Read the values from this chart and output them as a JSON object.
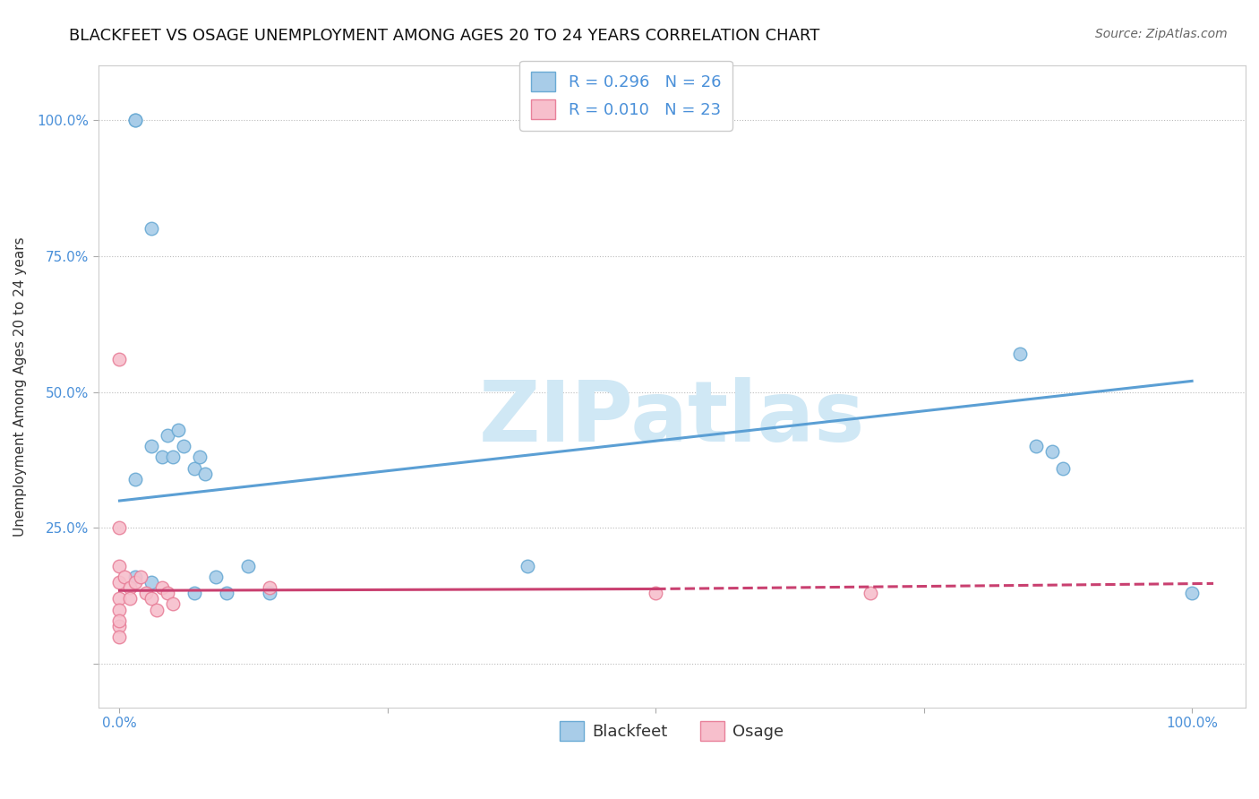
{
  "title": "BLACKFEET VS OSAGE UNEMPLOYMENT AMONG AGES 20 TO 24 YEARS CORRELATION CHART",
  "source": "Source: ZipAtlas.com",
  "ylabel": "Unemployment Among Ages 20 to 24 years",
  "xlim": [
    -0.02,
    1.05
  ],
  "ylim": [
    -0.08,
    1.1
  ],
  "blackfeet_color": "#a8cce8",
  "osage_color": "#f7bfcc",
  "blackfeet_edge": "#6aaad4",
  "osage_edge": "#e8819a",
  "trend_blackfeet_color": "#5b9fd4",
  "trend_osage_color": "#c94070",
  "blackfeet_R": "0.296",
  "blackfeet_N": "26",
  "osage_R": "0.010",
  "osage_N": "23",
  "legend_label_blackfeet": "Blackfeet",
  "legend_label_osage": "Osage",
  "blackfeet_x": [
    0.015,
    0.015,
    0.03,
    0.03,
    0.04,
    0.045,
    0.05,
    0.055,
    0.06,
    0.07,
    0.075,
    0.08,
    0.09,
    0.1,
    0.12,
    0.14,
    0.38,
    0.84,
    0.855,
    0.87,
    0.88,
    1.0,
    0.015,
    0.015,
    0.03,
    0.07
  ],
  "blackfeet_y": [
    1.0,
    1.0,
    0.8,
    0.4,
    0.38,
    0.42,
    0.38,
    0.43,
    0.4,
    0.36,
    0.38,
    0.35,
    0.16,
    0.13,
    0.18,
    0.13,
    0.18,
    0.57,
    0.4,
    0.39,
    0.36,
    0.13,
    0.34,
    0.16,
    0.15,
    0.13
  ],
  "osage_x": [
    0.0,
    0.0,
    0.0,
    0.0,
    0.0,
    0.0,
    0.005,
    0.01,
    0.01,
    0.015,
    0.02,
    0.025,
    0.03,
    0.035,
    0.04,
    0.045,
    0.05,
    0.14,
    0.5,
    0.7,
    0.0,
    0.0,
    0.0
  ],
  "osage_y": [
    0.56,
    0.25,
    0.18,
    0.15,
    0.12,
    0.07,
    0.16,
    0.14,
    0.12,
    0.15,
    0.16,
    0.13,
    0.12,
    0.1,
    0.14,
    0.13,
    0.11,
    0.14,
    0.13,
    0.13,
    0.1,
    0.08,
    0.05
  ],
  "blackfeet_trend": [
    0.0,
    1.0,
    0.3,
    0.52
  ],
  "osage_trend_solid": [
    0.0,
    0.5,
    0.135,
    0.138
  ],
  "osage_trend_dashed": [
    0.5,
    1.02,
    0.138,
    0.148
  ],
  "watermark_text": "ZIPatlas",
  "watermark_color": "#d0e8f5",
  "grid_color": "#bbbbbb",
  "title_fontsize": 13,
  "axis_label_fontsize": 11,
  "tick_fontsize": 11,
  "legend_fontsize": 13,
  "marker_size": 110
}
